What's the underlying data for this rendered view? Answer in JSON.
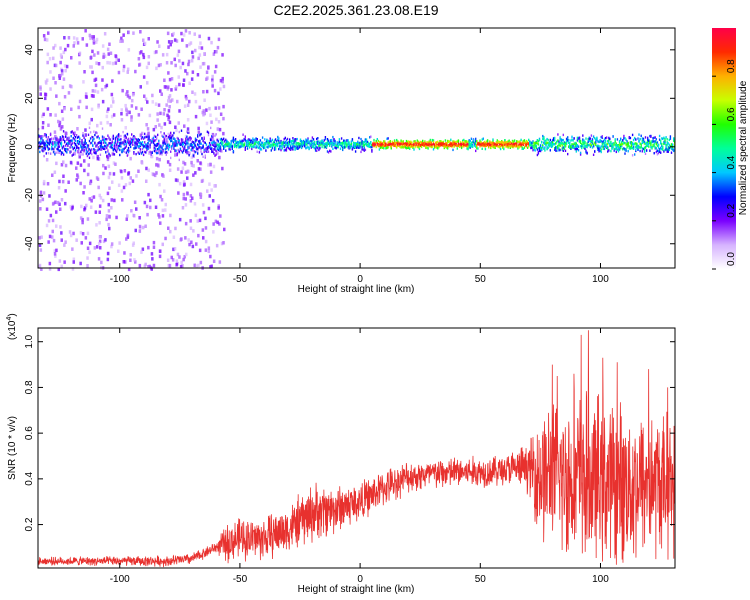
{
  "title": "C2E2.2025.361.23.08.E19",
  "colors": {
    "snr_line": "#e8312e",
    "axis": "#000000",
    "colorbar": [
      "#ffffff",
      "#d6b3ff",
      "#7a00ff",
      "#0000ff",
      "#00c8ff",
      "#00ff9a",
      "#20ff00",
      "#c8ff00",
      "#ffb000",
      "#ff2a00",
      "#ff0048"
    ]
  },
  "chart_data": [
    {
      "type": "heatmap",
      "name": "spectrogram",
      "title": "C2E2.2025.361.23.08.E19",
      "xlabel": "Height of straight line (km)",
      "ylabel": "Frequency (Hz)",
      "xlim": [
        -134,
        131
      ],
      "ylim": [
        -50,
        49
      ],
      "xticks": [
        -100,
        -50,
        0,
        50,
        100
      ],
      "xtick_labels": [
        "-100",
        "-50",
        "0",
        "50",
        "100"
      ],
      "yticks": [
        -40,
        -20,
        0,
        20,
        40
      ],
      "ytick_labels": [
        "-40",
        "-20",
        "0",
        "20",
        "40"
      ],
      "colorbar": {
        "label": "Normalized spectral amplitude",
        "range": [
          0,
          1
        ],
        "ticks": [
          0.0,
          0.2,
          0.4,
          0.6,
          0.8
        ],
        "tick_labels": [
          "0.0",
          "0.2",
          "0.4",
          "0.6",
          "0.8"
        ]
      },
      "band": {
        "description": "dominant energy band around 0 Hz",
        "center_hz": 1,
        "peak_amplitude": 0.98,
        "strong_segments_km": [
          [
            5,
            45
          ],
          [
            48,
            70
          ]
        ]
      }
    },
    {
      "type": "line",
      "name": "snr",
      "xlabel": "Height of straight line (km)",
      "ylabel": "SNR (10 * v/v)",
      "scale_label": "(x10",
      "scale_exponent": "4",
      "scale_suffix": ")",
      "xlim": [
        -134,
        131
      ],
      "ylim": [
        0.01,
        1.06
      ],
      "xticks": [
        -100,
        -50,
        0,
        50,
        100
      ],
      "xtick_labels": [
        "-100",
        "-50",
        "0",
        "50",
        "100"
      ],
      "yticks": [
        0.2,
        0.4,
        0.6,
        0.8,
        1.0
      ],
      "ytick_labels": [
        "0.2",
        "0.4",
        "0.6",
        "0.8",
        "1.0"
      ],
      "trend": [
        {
          "x": -134,
          "y": 0.04
        },
        {
          "x": -100,
          "y": 0.04
        },
        {
          "x": -80,
          "y": 0.04
        },
        {
          "x": -70,
          "y": 0.05
        },
        {
          "x": -60,
          "y": 0.1
        },
        {
          "x": -50,
          "y": 0.14
        },
        {
          "x": -40,
          "y": 0.14
        },
        {
          "x": -30,
          "y": 0.18
        },
        {
          "x": -20,
          "y": 0.25
        },
        {
          "x": -10,
          "y": 0.27
        },
        {
          "x": 0,
          "y": 0.3
        },
        {
          "x": 10,
          "y": 0.36
        },
        {
          "x": 20,
          "y": 0.41
        },
        {
          "x": 30,
          "y": 0.42
        },
        {
          "x": 40,
          "y": 0.43
        },
        {
          "x": 50,
          "y": 0.43
        },
        {
          "x": 60,
          "y": 0.44
        },
        {
          "x": 70,
          "y": 0.45
        },
        {
          "x": 75,
          "y": 0.42
        },
        {
          "x": 90,
          "y": 0.4
        },
        {
          "x": 110,
          "y": 0.38
        },
        {
          "x": 131,
          "y": 0.38
        }
      ],
      "noise": [
        {
          "x": -134,
          "a": 0.02
        },
        {
          "x": -60,
          "a": 0.03
        },
        {
          "x": -55,
          "a": 0.1
        },
        {
          "x": -30,
          "a": 0.12
        },
        {
          "x": -20,
          "a": 0.15
        },
        {
          "x": 0,
          "a": 0.1
        },
        {
          "x": 20,
          "a": 0.08
        },
        {
          "x": 60,
          "a": 0.08
        },
        {
          "x": 70,
          "a": 0.12
        },
        {
          "x": 75,
          "a": 0.35
        },
        {
          "x": 90,
          "a": 0.45
        },
        {
          "x": 131,
          "a": 0.35
        }
      ],
      "peaks": [
        {
          "x": 80,
          "y": 0.9
        },
        {
          "x": 82,
          "y": 0.85
        },
        {
          "x": 89,
          "y": 0.86
        },
        {
          "x": 92,
          "y": 1.03
        },
        {
          "x": 95,
          "y": 1.05
        },
        {
          "x": 101,
          "y": 0.93
        },
        {
          "x": 107,
          "y": 0.91
        },
        {
          "x": 120,
          "y": 0.88
        },
        {
          "x": 128,
          "y": 0.8
        }
      ]
    }
  ]
}
